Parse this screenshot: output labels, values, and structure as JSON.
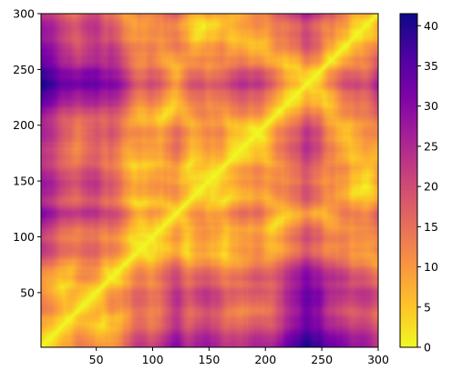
{
  "chart_data": {
    "type": "heatmap",
    "description_of_values": "symmetric distance-style matrix; diagonal = 0",
    "x_range": [
      1,
      300
    ],
    "y_range": [
      1,
      300
    ],
    "x_ticks": [
      50,
      100,
      150,
      200,
      250,
      300
    ],
    "y_ticks": [
      50,
      100,
      150,
      200,
      250,
      300
    ],
    "x_tick_labels": [
      "50",
      "100",
      "150",
      "200",
      "250",
      "300"
    ],
    "y_tick_labels": [
      "50",
      "100",
      "150",
      "200",
      "250",
      "300"
    ],
    "colorbar": {
      "colormap": "plasma_r",
      "vmin": 0,
      "vmax": 41.5,
      "ticks": [
        0,
        5,
        10,
        15,
        20,
        25,
        30,
        35,
        40
      ],
      "tick_labels": [
        "0",
        "5",
        "10",
        "15",
        "20",
        "25",
        "30",
        "35",
        "40"
      ]
    },
    "grid": false,
    "legend": "none",
    "title": "",
    "xlabel": "",
    "ylabel": ""
  }
}
